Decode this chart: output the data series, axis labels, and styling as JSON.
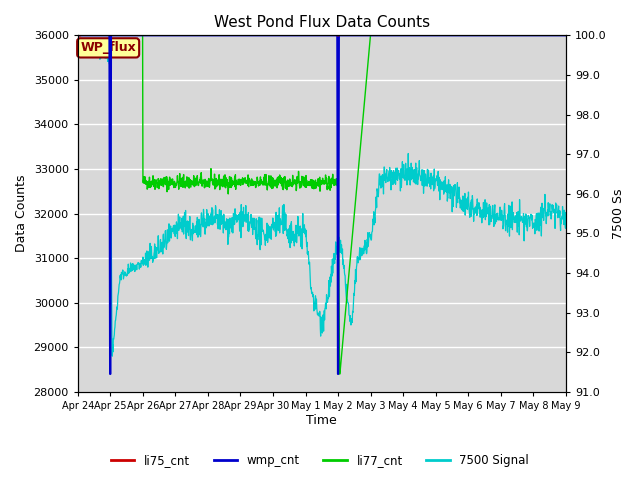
{
  "title": "West Pond Flux Data Counts",
  "ylabel_left": "Data Counts",
  "ylabel_right": "7500 Ss",
  "xlabel": "Time",
  "ylim_left": [
    28000,
    36000
  ],
  "ylim_right": [
    91.0,
    100.0
  ],
  "yticks_left": [
    28000,
    29000,
    30000,
    31000,
    32000,
    33000,
    34000,
    35000,
    36000
  ],
  "yticks_right": [
    91.0,
    92.0,
    93.0,
    94.0,
    95.0,
    96.0,
    97.0,
    98.0,
    99.0,
    100.0
  ],
  "xtick_labels": [
    "Apr 24",
    "Apr 25",
    "Apr 26",
    "Apr 27",
    "Apr 28",
    "Apr 29",
    "Apr 30",
    "May 1",
    "May 2",
    "May 3",
    "May 4",
    "May 5",
    "May 6",
    "May 7",
    "May 8",
    "May 9"
  ],
  "bg_color": "#d8d8d8",
  "annotation_text": "WP_flux",
  "annotation_color": "#8b0000",
  "annotation_bg": "#ffff99",
  "li75_color": "#cc0000",
  "wmp_color": "#0000cc",
  "li77_color": "#00cc00",
  "signal_color": "#00cccc",
  "grid_color": "#ffffff",
  "fig_bg": "#ffffff"
}
